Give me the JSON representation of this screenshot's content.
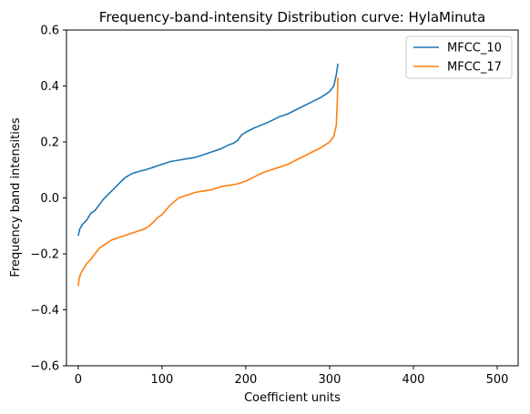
{
  "chart_data": {
    "type": "line",
    "title": "Frequency-band-intensity Distribution curve: HylaMinuta",
    "xlabel": "Coefficient units",
    "ylabel": "Frequency band intensities",
    "xlim": [
      -14,
      525
    ],
    "ylim": [
      -0.6,
      0.6
    ],
    "xticks": [
      0,
      100,
      200,
      300,
      400,
      500
    ],
    "yticks": [
      -0.6,
      -0.4,
      -0.2,
      0.0,
      0.2,
      0.4,
      0.6
    ],
    "xtick_labels": [
      "0",
      "100",
      "200",
      "300",
      "400",
      "500"
    ],
    "ytick_labels": [
      "−0.6",
      "−0.4",
      "−0.2",
      "0.0",
      "0.2",
      "0.4",
      "0.6"
    ],
    "grid": false,
    "legend_position": "top-right",
    "series": [
      {
        "name": "MFCC_10",
        "color": "#1f77b4",
        "x": [
          0,
          2,
          5,
          10,
          15,
          20,
          25,
          30,
          35,
          40,
          45,
          50,
          55,
          60,
          65,
          70,
          75,
          80,
          85,
          90,
          95,
          100,
          110,
          120,
          130,
          140,
          150,
          160,
          170,
          180,
          185,
          190,
          195,
          200,
          210,
          220,
          230,
          240,
          250,
          260,
          270,
          280,
          290,
          300,
          305,
          308,
          310
        ],
        "y": [
          -0.135,
          -0.11,
          -0.095,
          -0.08,
          -0.055,
          -0.045,
          -0.025,
          -0.005,
          0.01,
          0.025,
          0.04,
          0.055,
          0.07,
          0.08,
          0.088,
          0.092,
          0.097,
          0.1,
          0.105,
          0.11,
          0.115,
          0.12,
          0.13,
          0.135,
          0.14,
          0.145,
          0.155,
          0.165,
          0.175,
          0.19,
          0.195,
          0.205,
          0.225,
          0.235,
          0.25,
          0.262,
          0.275,
          0.29,
          0.3,
          0.315,
          0.33,
          0.345,
          0.36,
          0.38,
          0.4,
          0.44,
          0.48
        ]
      },
      {
        "name": "MFCC_17",
        "color": "#ff7f0e",
        "x": [
          0,
          1,
          3,
          5,
          10,
          15,
          20,
          25,
          30,
          35,
          40,
          50,
          60,
          70,
          75,
          80,
          85,
          90,
          95,
          100,
          110,
          120,
          130,
          140,
          150,
          160,
          170,
          180,
          190,
          200,
          210,
          220,
          230,
          240,
          250,
          260,
          270,
          280,
          290,
          300,
          305,
          308,
          309,
          310
        ],
        "y": [
          -0.315,
          -0.29,
          -0.27,
          -0.26,
          -0.235,
          -0.22,
          -0.2,
          -0.18,
          -0.17,
          -0.16,
          -0.15,
          -0.14,
          -0.13,
          -0.12,
          -0.115,
          -0.11,
          -0.1,
          -0.085,
          -0.07,
          -0.06,
          -0.025,
          0.0,
          0.01,
          0.02,
          0.025,
          0.03,
          0.04,
          0.045,
          0.05,
          0.06,
          0.075,
          0.09,
          0.1,
          0.11,
          0.12,
          0.135,
          0.15,
          0.165,
          0.18,
          0.2,
          0.22,
          0.26,
          0.33,
          0.43
        ]
      }
    ]
  }
}
